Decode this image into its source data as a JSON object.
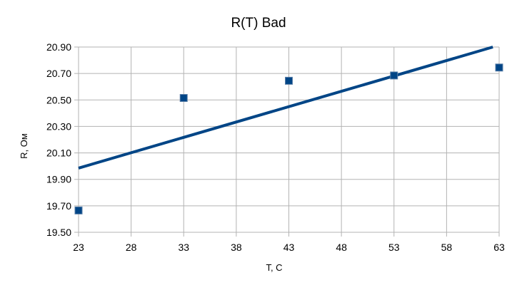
{
  "chart_data": {
    "type": "scatter",
    "title": "R(T) Bad",
    "xlabel": "T, C",
    "ylabel": "R, Ом",
    "xlim": [
      23,
      63
    ],
    "ylim": [
      19.5,
      20.9
    ],
    "x_ticks": [
      "23",
      "28",
      "33",
      "38",
      "43",
      "48",
      "53",
      "58",
      "63"
    ],
    "y_ticks": [
      "20.90",
      "20.70",
      "20.50",
      "20.30",
      "20.10",
      "19.90",
      "19.70",
      "19.50"
    ],
    "grid": true,
    "legend": "none",
    "series": [
      {
        "kind": "points",
        "color": "#004586",
        "x": [
          23,
          33,
          43,
          53,
          63
        ],
        "y": [
          19.665,
          20.515,
          20.645,
          20.685,
          20.745
        ]
      },
      {
        "kind": "trendline",
        "color": "#004586",
        "x": [
          23,
          62.4
        ],
        "y": [
          19.985,
          20.9
        ]
      }
    ]
  }
}
